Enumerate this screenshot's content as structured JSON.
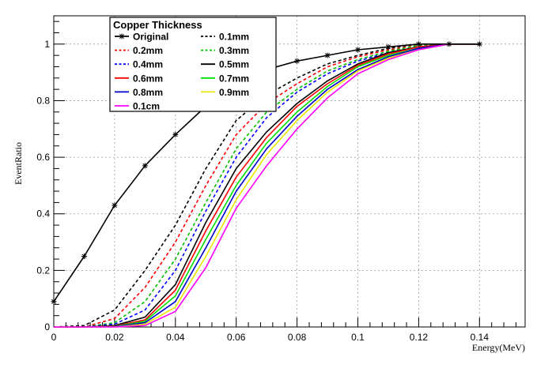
{
  "chart_data": {
    "type": "line",
    "title": "",
    "xlabel": "Energy(MeV)",
    "ylabel": "EventRatio",
    "xlim": [
      0,
      0.155
    ],
    "ylim": [
      0,
      1.1
    ],
    "grid": true,
    "xticks": [
      "0",
      "0.02",
      "0.04",
      "0.06",
      "0.08",
      "0.1",
      "0.12",
      "0.14"
    ],
    "yticks": [
      "0",
      "0.2",
      "0.4",
      "0.6",
      "0.8",
      "1"
    ],
    "legend": {
      "title": "Copper Thickness",
      "position": "top-left"
    },
    "x": [
      0,
      0.01,
      0.02,
      0.03,
      0.04,
      0.05,
      0.06,
      0.07,
      0.08,
      0.09,
      0.1,
      0.11,
      0.12,
      0.13,
      0.14
    ],
    "series": [
      {
        "name": "Original",
        "color": "#000000",
        "dash": "solid",
        "marker": "star",
        "values": [
          0.09,
          0.25,
          0.43,
          0.57,
          0.68,
          0.78,
          0.865,
          0.91,
          0.94,
          0.96,
          0.98,
          0.99,
          1.0,
          1.0,
          1.0
        ]
      },
      {
        "name": "0.1mm",
        "color": "#000000",
        "dash": "dotted",
        "marker": "none",
        "values": [
          0.0,
          0.005,
          0.06,
          0.2,
          0.36,
          0.56,
          0.73,
          0.82,
          0.88,
          0.93,
          0.96,
          0.985,
          1.0,
          1.0,
          1.0
        ]
      },
      {
        "name": "0.2mm",
        "color": "#ff0000",
        "dash": "dotted",
        "marker": "none",
        "values": [
          0.0,
          0.0,
          0.03,
          0.14,
          0.3,
          0.5,
          0.68,
          0.79,
          0.86,
          0.92,
          0.955,
          0.98,
          0.995,
          1.0,
          1.0
        ]
      },
      {
        "name": "0.3mm",
        "color": "#00c000",
        "dash": "dotted",
        "marker": "none",
        "values": [
          0.0,
          0.0,
          0.015,
          0.09,
          0.24,
          0.44,
          0.63,
          0.76,
          0.84,
          0.905,
          0.945,
          0.975,
          0.995,
          1.0,
          1.0
        ]
      },
      {
        "name": "0.4mm",
        "color": "#0000ff",
        "dash": "dotted",
        "marker": "none",
        "values": [
          0.0,
          0.0,
          0.01,
          0.06,
          0.2,
          0.41,
          0.6,
          0.74,
          0.83,
          0.895,
          0.94,
          0.97,
          0.99,
          1.0,
          1.0
        ]
      },
      {
        "name": "0.5mm",
        "color": "#000000",
        "dash": "solid",
        "marker": "none",
        "values": [
          0.0,
          0.0,
          0.005,
          0.035,
          0.15,
          0.37,
          0.56,
          0.69,
          0.79,
          0.87,
          0.93,
          0.97,
          0.99,
          1.0,
          1.0
        ]
      },
      {
        "name": "0.6mm",
        "color": "#ff0000",
        "dash": "solid",
        "marker": "none",
        "values": [
          0.0,
          0.0,
          0.003,
          0.025,
          0.13,
          0.34,
          0.53,
          0.67,
          0.78,
          0.86,
          0.925,
          0.965,
          0.99,
          1.0,
          1.0
        ]
      },
      {
        "name": "0.7mm",
        "color": "#00e000",
        "dash": "solid",
        "marker": "none",
        "values": [
          0.0,
          0.0,
          0.002,
          0.02,
          0.11,
          0.31,
          0.5,
          0.65,
          0.76,
          0.85,
          0.92,
          0.96,
          0.985,
          1.0,
          1.0
        ]
      },
      {
        "name": "0.8mm",
        "color": "#0000cc",
        "dash": "solid",
        "marker": "none",
        "values": [
          0.0,
          0.0,
          0.001,
          0.015,
          0.09,
          0.28,
          0.48,
          0.63,
          0.745,
          0.84,
          0.91,
          0.955,
          0.985,
          1.0,
          1.0
        ]
      },
      {
        "name": "0.9mm",
        "color": "#e8e800",
        "dash": "solid",
        "marker": "none",
        "values": [
          0.0,
          0.0,
          0.0,
          0.01,
          0.07,
          0.25,
          0.45,
          0.61,
          0.73,
          0.83,
          0.905,
          0.95,
          0.98,
          1.0,
          1.0
        ]
      },
      {
        "name": "0.1cm",
        "color": "#ff00ff",
        "dash": "solid",
        "marker": "none",
        "values": [
          0.0,
          0.0,
          0.0,
          0.005,
          0.055,
          0.21,
          0.42,
          0.57,
          0.7,
          0.81,
          0.895,
          0.945,
          0.98,
          1.0,
          1.0
        ]
      }
    ]
  }
}
